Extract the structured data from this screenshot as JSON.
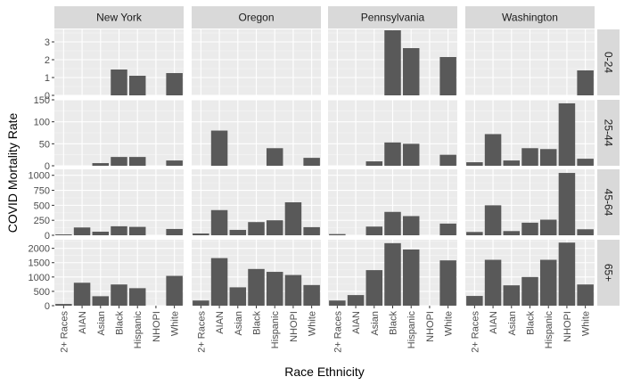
{
  "chart_data": {
    "type": "bar",
    "xlabel": "Race Ethnicity",
    "ylabel": "COVID Mortality Rate",
    "columns": [
      "New York",
      "Oregon",
      "Pennsylvania",
      "Washington"
    ],
    "rows": [
      "0-24",
      "25-44",
      "45-64",
      "65+"
    ],
    "categories": [
      "2+ Races",
      "AIAN",
      "Asian",
      "Black",
      "Hispanic",
      "NHOPI",
      "White"
    ],
    "row_axes": [
      {
        "ylim": [
          0,
          3.7
        ],
        "ticks": [
          0,
          1,
          2,
          3
        ],
        "tick_labels": [
          "0",
          "1",
          "2",
          "3"
        ]
      },
      {
        "ylim": [
          0,
          150
        ],
        "ticks": [
          0,
          50,
          100,
          150
        ],
        "tick_labels": [
          "0",
          "50",
          "100",
          "150"
        ]
      },
      {
        "ylim": [
          0,
          1100
        ],
        "ticks": [
          0,
          250,
          500,
          750,
          1000
        ],
        "tick_labels": [
          "0",
          "250",
          "500",
          "750",
          "1000"
        ]
      },
      {
        "ylim": [
          0,
          2300
        ],
        "ticks": [
          0,
          500,
          1000,
          1500,
          2000
        ],
        "tick_labels": [
          "0",
          "500",
          "1000",
          "1500",
          "2000"
        ]
      }
    ],
    "panels": [
      {
        "column": "New York",
        "row": "0-24",
        "values": [
          null,
          null,
          null,
          1.45,
          1.1,
          null,
          1.25
        ]
      },
      {
        "column": "Oregon",
        "row": "0-24",
        "values": [
          null,
          null,
          null,
          null,
          null,
          null,
          null
        ]
      },
      {
        "column": "Pennsylvania",
        "row": "0-24",
        "values": [
          null,
          null,
          null,
          3.65,
          2.65,
          null,
          2.15
        ]
      },
      {
        "column": "Washington",
        "row": "0-24",
        "values": [
          null,
          null,
          null,
          null,
          null,
          null,
          1.4
        ]
      },
      {
        "column": "New York",
        "row": "25-44",
        "values": [
          null,
          null,
          6,
          20,
          20,
          null,
          12
        ]
      },
      {
        "column": "Oregon",
        "row": "25-44",
        "values": [
          null,
          80,
          null,
          null,
          40,
          null,
          18
        ]
      },
      {
        "column": "Pennsylvania",
        "row": "25-44",
        "values": [
          null,
          null,
          10,
          53,
          50,
          null,
          25
        ]
      },
      {
        "column": "Washington",
        "row": "25-44",
        "values": [
          8,
          72,
          12,
          40,
          38,
          142,
          16
        ]
      },
      {
        "column": "New York",
        "row": "45-64",
        "values": [
          15,
          130,
          60,
          150,
          140,
          null,
          105
        ]
      },
      {
        "column": "Oregon",
        "row": "45-64",
        "values": [
          30,
          420,
          90,
          220,
          250,
          550,
          135
        ]
      },
      {
        "column": "Pennsylvania",
        "row": "45-64",
        "values": [
          20,
          null,
          145,
          390,
          320,
          null,
          195
        ]
      },
      {
        "column": "Washington",
        "row": "45-64",
        "values": [
          55,
          500,
          70,
          210,
          260,
          1040,
          100
        ]
      },
      {
        "column": "New York",
        "row": "65+",
        "values": [
          60,
          800,
          330,
          740,
          610,
          null,
          1040
        ]
      },
      {
        "column": "Oregon",
        "row": "65+",
        "values": [
          180,
          1660,
          640,
          1280,
          1180,
          1070,
          720
        ]
      },
      {
        "column": "Pennsylvania",
        "row": "65+",
        "values": [
          180,
          370,
          1240,
          2180,
          1960,
          null,
          1580
        ]
      },
      {
        "column": "Washington",
        "row": "65+",
        "values": [
          340,
          1600,
          710,
          1000,
          1600,
          2200,
          740
        ]
      }
    ],
    "colors": {
      "bar": "#595959",
      "panel_bg": "#ebebeb",
      "grid_major": "#ffffff",
      "grid_minor": "#f5f5f5",
      "strip_bg": "#d9d9d9",
      "text": "#1a1a1a",
      "tick_text": "#4d4d4d"
    },
    "grid": true,
    "legend": "none"
  }
}
